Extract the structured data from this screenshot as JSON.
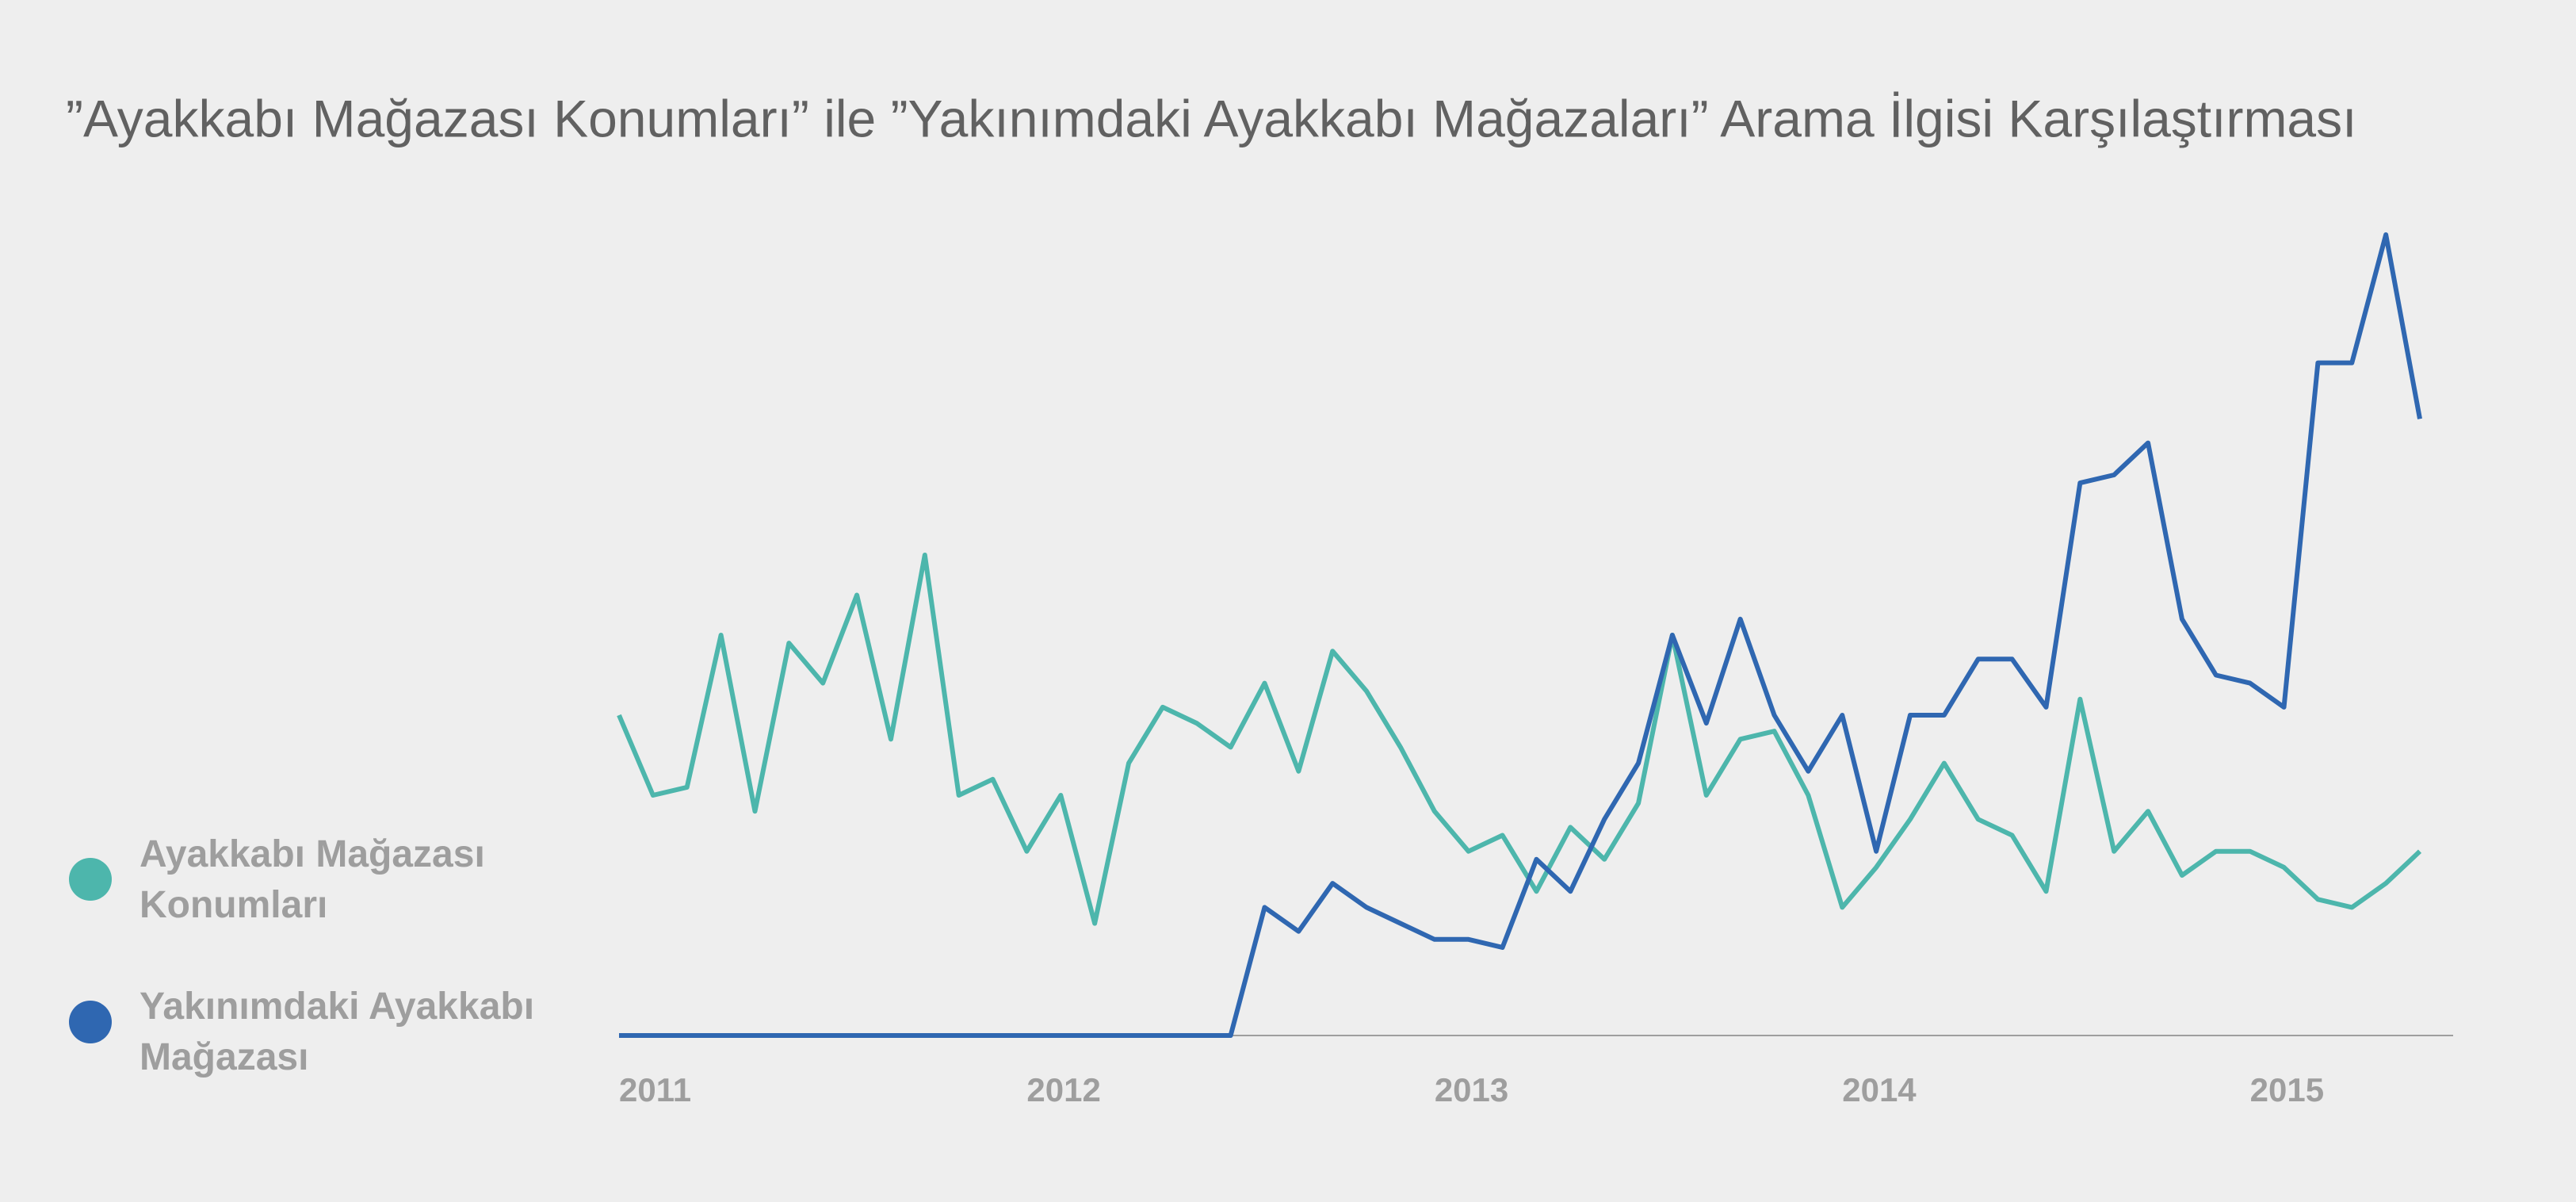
{
  "chart_data": {
    "type": "line",
    "title": "”Ayakkabı Mağazası Konumları” ile ”Yakınımdaki Ayakkabı Mağazaları” Arama İlgisi Karşılaştırması",
    "categories": [
      "2011",
      null,
      null,
      null,
      null,
      null,
      null,
      null,
      null,
      null,
      null,
      null,
      "2012",
      null,
      null,
      null,
      null,
      null,
      null,
      null,
      null,
      null,
      null,
      null,
      "2013",
      null,
      null,
      null,
      null,
      null,
      null,
      null,
      null,
      null,
      null,
      null,
      "2014",
      null,
      null,
      null,
      null,
      null,
      null,
      null,
      null,
      null,
      null,
      null,
      "2015",
      null,
      null,
      null,
      null,
      null
    ],
    "series": [
      {
        "name": "Ayakkabı Mağazası Konumları",
        "color": "#4db6ac",
        "values": [
          40,
          30,
          31,
          50,
          28,
          49,
          44,
          55,
          37,
          60,
          30,
          32,
          23,
          30,
          14,
          34,
          41,
          39,
          36,
          44,
          33,
          48,
          43,
          36,
          28,
          23,
          25,
          18,
          26,
          22,
          29,
          50,
          30,
          37,
          38,
          30,
          16,
          21,
          27,
          34,
          27,
          25,
          18,
          42,
          23,
          28,
          20,
          23,
          23,
          21,
          17,
          16,
          19,
          23
        ]
      },
      {
        "name": "Yakınımdaki Ayakkabı Mağazası",
        "color": "#2f67b1",
        "values": [
          0,
          0,
          0,
          0,
          0,
          0,
          0,
          0,
          0,
          0,
          0,
          0,
          0,
          0,
          0,
          0,
          0,
          0,
          0,
          16,
          13,
          19,
          16,
          14,
          12,
          12,
          11,
          22,
          18,
          27,
          34,
          50,
          39,
          52,
          40,
          33,
          40,
          23,
          40,
          40,
          47,
          47,
          41,
          69,
          70,
          74,
          52,
          45,
          44,
          41,
          84,
          84,
          100,
          77
        ]
      }
    ],
    "ylim": [
      0,
      100
    ],
    "grid": false
  }
}
